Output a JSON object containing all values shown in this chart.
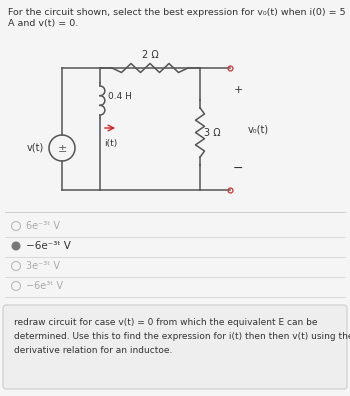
{
  "title_line1": "For the circuit shown, select the best expression for v₀(t) when i(0) = 5",
  "title_line2": "A and v(t) = 0.",
  "resistor1_label": "2 Ω",
  "inductor_label": "0.4 H",
  "current_label": "i(t)",
  "resistor2_label": "3 Ω",
  "vo_label": "v₀(t)",
  "vt_label": "v(t)",
  "plus_sign": "+",
  "minus_sign": "−",
  "options": [
    {
      "label": "6e⁻³ᵗ V",
      "selected": false
    },
    {
      "label": "−6e⁻³ᵗ V",
      "selected": true
    },
    {
      "label": "3e⁻³ᵗ V",
      "selected": false
    },
    {
      "label": "−6e³ᵗ V",
      "selected": false
    }
  ],
  "explanation": "redraw circuit for case v(t) = 0 from which the equivalent E can be\ndetermined. Use this to find the expression for i(t) then then v(t) using the\nderivative relation for an inductoe.",
  "bg_color": "#e8e8e8",
  "content_bg": "#f5f5f5",
  "white": "#ffffff",
  "option_selected_dot": "#555555",
  "option_unselected_color": "#aaaaaa",
  "option_selected_color": "#333333",
  "text_color": "#333333",
  "explanation_bg": "#eeeeee",
  "wire_color": "#555555",
  "red_arrow": "#cc2222",
  "terminal_color": "#cc4444",
  "sep_color": "#cccccc"
}
